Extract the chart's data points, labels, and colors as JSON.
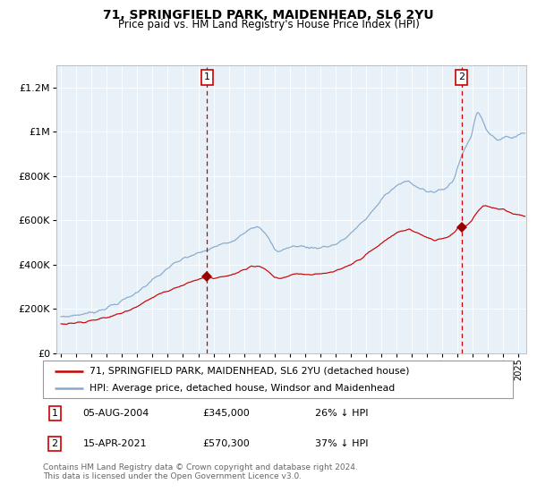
{
  "title": "71, SPRINGFIELD PARK, MAIDENHEAD, SL6 2YU",
  "subtitle": "Price paid vs. HM Land Registry's House Price Index (HPI)",
  "bg_color": "#e8f0f8",
  "red_line_color": "#cc0000",
  "blue_line_color": "#88aacc",
  "purchase1_year": 2004.583,
  "purchase1_price": 345000,
  "purchase2_year": 2021.25,
  "purchase2_price": 570300,
  "legend_line1": "71, SPRINGFIELD PARK, MAIDENHEAD, SL6 2YU (detached house)",
  "legend_line2": "HPI: Average price, detached house, Windsor and Maidenhead",
  "footer": "Contains HM Land Registry data © Crown copyright and database right 2024.\nThis data is licensed under the Open Government Licence v3.0.",
  "ylim": [
    0,
    1300000
  ],
  "ytick_vals": [
    0,
    200000,
    400000,
    600000,
    800000,
    1000000,
    1200000
  ],
  "ytick_labels": [
    "£0",
    "£200K",
    "£400K",
    "£600K",
    "£800K",
    "£1M",
    "£1.2M"
  ],
  "xmin": 1994.7,
  "xmax": 2025.5,
  "hpi_keypoints_x": [
    1995.0,
    1996.0,
    1997.0,
    1998.0,
    1999.0,
    2000.0,
    2000.5,
    2001.0,
    2001.5,
    2002.0,
    2002.5,
    2003.0,
    2003.5,
    2004.0,
    2004.5,
    2005.0,
    2005.5,
    2006.0,
    2006.5,
    2007.0,
    2007.5,
    2008.0,
    2008.5,
    2009.0,
    2009.3,
    2009.6,
    2010.0,
    2010.5,
    2011.0,
    2011.5,
    2012.0,
    2012.5,
    2013.0,
    2013.5,
    2014.0,
    2014.5,
    2015.0,
    2015.5,
    2016.0,
    2016.3,
    2016.6,
    2017.0,
    2017.4,
    2017.8,
    2018.0,
    2018.5,
    2019.0,
    2019.5,
    2020.0,
    2020.3,
    2020.7,
    2021.0,
    2021.3,
    2021.6,
    2021.9,
    2022.1,
    2022.3,
    2022.6,
    2022.9,
    2023.2,
    2023.5,
    2023.8,
    2024.1,
    2024.5,
    2025.0,
    2025.3
  ],
  "hpi_keypoints_y": [
    163000,
    172000,
    183000,
    205000,
    235000,
    275000,
    305000,
    330000,
    352000,
    385000,
    405000,
    425000,
    440000,
    450000,
    462000,
    478000,
    490000,
    500000,
    520000,
    545000,
    570000,
    565000,
    530000,
    472000,
    458000,
    468000,
    478000,
    485000,
    480000,
    475000,
    478000,
    482000,
    492000,
    510000,
    542000,
    572000,
    608000,
    648000,
    694000,
    718000,
    730000,
    755000,
    770000,
    775000,
    765000,
    750000,
    730000,
    725000,
    738000,
    748000,
    778000,
    840000,
    895000,
    940000,
    980000,
    1050000,
    1090000,
    1060000,
    1010000,
    985000,
    970000,
    965000,
    970000,
    975000,
    985000,
    995000
  ],
  "red_keypoints_x": [
    1995.0,
    1996.0,
    1997.0,
    1998.0,
    1999.0,
    2000.0,
    2000.5,
    2001.0,
    2001.5,
    2002.0,
    2002.5,
    2003.0,
    2003.5,
    2004.0,
    2004.583,
    2005.0,
    2005.5,
    2006.0,
    2006.5,
    2007.0,
    2007.5,
    2008.0,
    2008.5,
    2009.0,
    2009.3,
    2009.6,
    2010.0,
    2010.5,
    2011.0,
    2011.5,
    2012.0,
    2012.5,
    2013.0,
    2013.5,
    2014.0,
    2014.5,
    2015.0,
    2015.5,
    2016.0,
    2016.5,
    2017.0,
    2017.5,
    2017.8,
    2018.2,
    2018.5,
    2019.0,
    2019.5,
    2020.0,
    2020.5,
    2020.8,
    2021.0,
    2021.25,
    2021.6,
    2021.9,
    2022.1,
    2022.4,
    2022.7,
    2023.0,
    2023.3,
    2023.6,
    2024.0,
    2024.3,
    2024.6,
    2025.0,
    2025.3
  ],
  "red_keypoints_y": [
    132000,
    137000,
    148000,
    160000,
    182000,
    213000,
    232000,
    250000,
    268000,
    282000,
    295000,
    308000,
    322000,
    333000,
    345000,
    338000,
    344000,
    350000,
    362000,
    378000,
    395000,
    393000,
    372000,
    345000,
    337000,
    342000,
    352000,
    360000,
    357000,
    353000,
    357000,
    362000,
    370000,
    382000,
    400000,
    420000,
    445000,
    468000,
    495000,
    520000,
    543000,
    555000,
    560000,
    548000,
    538000,
    520000,
    510000,
    518000,
    530000,
    548000,
    565000,
    570300,
    580000,
    595000,
    620000,
    648000,
    668000,
    662000,
    655000,
    650000,
    647000,
    640000,
    632000,
    625000,
    622000
  ]
}
